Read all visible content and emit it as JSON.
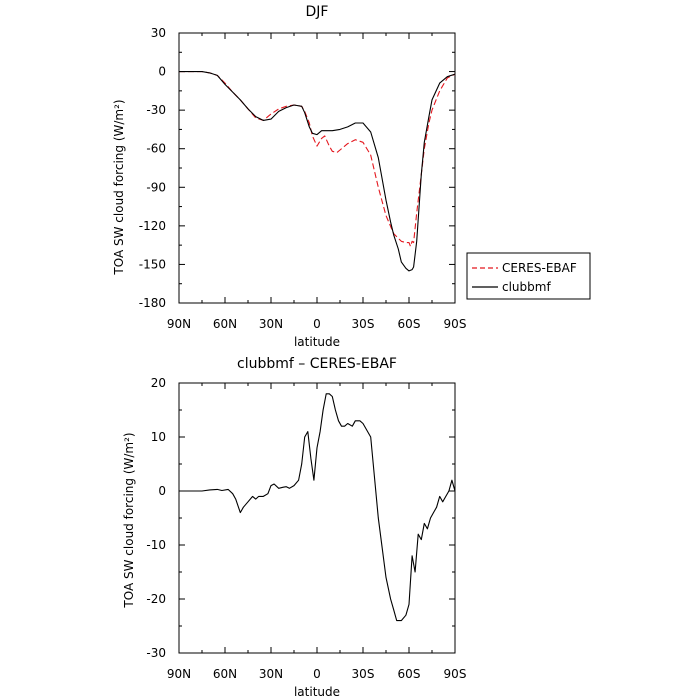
{
  "chart_data": [
    {
      "type": "line",
      "title": "DJF",
      "xlabel": "latitude",
      "ylabel": "TOA SW cloud forcing (W/m²)",
      "x_tick_labels": [
        "90N",
        "60N",
        "30N",
        "0",
        "30S",
        "60S",
        "90S"
      ],
      "x_tick_values": [
        -90,
        -60,
        -30,
        0,
        30,
        60,
        90
      ],
      "xlim": [
        -90,
        90
      ],
      "ylim": [
        -180,
        30
      ],
      "y_ticks": [
        30,
        0,
        -30,
        -60,
        -90,
        -120,
        -150,
        -180
      ],
      "legend": {
        "placement": "outside-right"
      },
      "series": [
        {
          "name": "CERES-EBAF",
          "color": "#e4181f",
          "dash": "dashed",
          "x": [
            -90,
            -80,
            -75,
            -70,
            -65,
            -60,
            -55,
            -50,
            -45,
            -40,
            -35,
            -30,
            -25,
            -20,
            -15,
            -10,
            -8,
            -5,
            -3,
            0,
            3,
            5,
            8,
            10,
            13,
            15,
            20,
            25,
            30,
            35,
            40,
            45,
            50,
            55,
            58,
            60,
            61,
            62,
            63,
            65,
            68,
            70,
            73,
            75,
            80,
            85,
            90
          ],
          "y": [
            0,
            0,
            0,
            -1,
            -3,
            -9,
            -16,
            -22,
            -29,
            -36,
            -38,
            -33,
            -29,
            -27,
            -26,
            -27,
            -31,
            -40,
            -50,
            -58,
            -52,
            -50,
            -58,
            -62,
            -63,
            -61,
            -56,
            -53,
            -55,
            -65,
            -90,
            -112,
            -126,
            -132,
            -133,
            -133,
            -136,
            -132,
            -133,
            -110,
            -80,
            -60,
            -40,
            -30,
            -15,
            -5,
            -2
          ]
        },
        {
          "name": "clubbmf",
          "color": "#000000",
          "dash": "solid",
          "x": [
            -90,
            -80,
            -75,
            -70,
            -65,
            -60,
            -55,
            -50,
            -45,
            -40,
            -35,
            -30,
            -25,
            -20,
            -15,
            -10,
            -8,
            -5,
            -3,
            0,
            3,
            5,
            8,
            10,
            15,
            20,
            25,
            30,
            35,
            40,
            45,
            48,
            50,
            53,
            55,
            58,
            60,
            62,
            63,
            65,
            68,
            70,
            73,
            75,
            80,
            85,
            90
          ],
          "y": [
            0,
            0,
            0,
            -1,
            -3,
            -10,
            -16,
            -22,
            -29,
            -35,
            -38,
            -37,
            -31,
            -28,
            -26,
            -27,
            -32,
            -43,
            -48,
            -49,
            -46,
            -46,
            -46,
            -46,
            -45,
            -43,
            -40,
            -40,
            -47,
            -67,
            -100,
            -117,
            -127,
            -138,
            -148,
            -153,
            -155,
            -154,
            -152,
            -132,
            -80,
            -55,
            -35,
            -22,
            -9,
            -4,
            -2
          ]
        }
      ]
    },
    {
      "type": "line",
      "title": "clubbmf – CERES-EBAF",
      "xlabel": "latitude",
      "ylabel": "TOA SW cloud forcing (W/m²)",
      "x_tick_labels": [
        "90N",
        "60N",
        "30N",
        "0",
        "30S",
        "60S",
        "90S"
      ],
      "x_tick_values": [
        -90,
        -60,
        -30,
        0,
        30,
        60,
        90
      ],
      "xlim": [
        -90,
        90
      ],
      "ylim": [
        -30,
        20
      ],
      "y_ticks": [
        20,
        10,
        0,
        -10,
        -20,
        -30
      ],
      "series": [
        {
          "color": "#000000",
          "dash": "solid",
          "x": [
            -90,
            -80,
            -75,
            -70,
            -65,
            -62,
            -58,
            -55,
            -53,
            -50,
            -48,
            -45,
            -42,
            -40,
            -38,
            -35,
            -32,
            -30,
            -28,
            -25,
            -22,
            -20,
            -18,
            -15,
            -12,
            -10,
            -8,
            -6,
            -4,
            -2,
            0,
            2,
            4,
            6,
            8,
            10,
            12,
            14,
            16,
            18,
            20,
            23,
            25,
            28,
            30,
            35,
            40,
            45,
            48,
            50,
            52,
            55,
            58,
            60,
            62,
            64,
            66,
            68,
            70,
            72,
            74,
            76,
            78,
            80,
            82,
            84,
            86,
            88,
            90
          ],
          "y": [
            0,
            0,
            0,
            0.2,
            0.3,
            0.1,
            0.3,
            -0.5,
            -1.5,
            -4,
            -3,
            -2,
            -1,
            -1.5,
            -1,
            -1,
            -0.5,
            1,
            1.3,
            0.5,
            0.7,
            0.8,
            0.5,
            1,
            2,
            5,
            10,
            11,
            6,
            2,
            8,
            11,
            15,
            18,
            18,
            17.5,
            15,
            13,
            12,
            12,
            12.5,
            12,
            13,
            13,
            12.5,
            10,
            -5,
            -16,
            -20,
            -22,
            -24,
            -24,
            -23,
            -21,
            -12,
            -15,
            -8,
            -9,
            -6,
            -7,
            -5,
            -4,
            -3,
            -1,
            -2,
            -1,
            0,
            2,
            0
          ]
        }
      ]
    }
  ]
}
